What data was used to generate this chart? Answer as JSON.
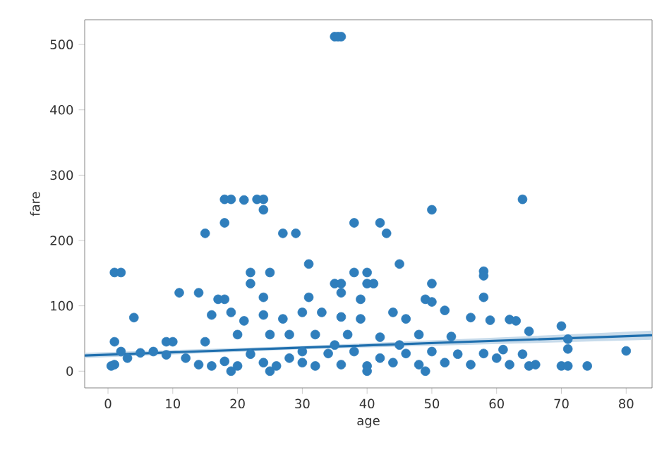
{
  "chart_data": {
    "type": "scatter",
    "xlabel": "age",
    "ylabel": "fare",
    "xlim": [
      -3.6,
      84
    ],
    "ylim": [
      -25.6,
      537.9
    ],
    "xticks": [
      0,
      10,
      20,
      30,
      40,
      50,
      60,
      70,
      80
    ],
    "yticks": [
      0,
      100,
      200,
      300,
      400,
      500
    ],
    "series": [
      {
        "color": "#2f7ebc",
        "marker": "circle",
        "x": [
          35,
          36,
          35.5,
          18,
          19,
          23,
          24,
          21,
          64,
          24,
          50,
          18,
          38,
          42,
          15,
          27,
          29,
          43,
          31,
          45,
          1,
          2,
          22,
          25,
          38,
          40,
          58,
          58,
          22,
          35,
          36,
          40,
          41,
          50,
          36,
          11,
          14,
          24,
          31,
          39,
          58,
          17,
          18,
          49,
          50,
          4,
          16,
          19,
          21,
          24,
          27,
          30,
          33,
          36,
          39,
          44,
          46,
          52,
          56,
          59,
          62,
          63,
          70,
          65,
          20,
          25,
          28,
          32,
          37,
          42,
          48,
          53,
          71,
          71,
          80,
          1,
          2,
          3,
          5,
          7,
          9,
          10,
          12,
          14,
          16,
          18,
          20,
          22,
          24,
          26,
          28,
          30,
          32,
          34,
          36,
          38,
          40,
          42,
          44,
          46,
          48,
          50,
          52,
          54,
          56,
          58,
          60,
          61,
          62,
          64,
          65,
          66,
          70,
          71,
          74,
          1,
          9,
          0.5,
          15,
          25,
          30,
          35,
          45,
          19,
          49,
          40
        ],
        "values": [
          512,
          512,
          512,
          263,
          263,
          263,
          263,
          262,
          263,
          247,
          247,
          227,
          227,
          227,
          211,
          211,
          211,
          211,
          164,
          164,
          151,
          151,
          151,
          151,
          151,
          151,
          153,
          146,
          134,
          134,
          134,
          134,
          134,
          134,
          120,
          120,
          120,
          113,
          113,
          110,
          113,
          110,
          110,
          110,
          106,
          82,
          86,
          90,
          77,
          86,
          80,
          90,
          90,
          83,
          80,
          90,
          80,
          93,
          82,
          78,
          79,
          77,
          69,
          61,
          56,
          56,
          56,
          56,
          56,
          52,
          56,
          53,
          49,
          34,
          31,
          10,
          30,
          20,
          28,
          30,
          25,
          45,
          20,
          10,
          8,
          15,
          8,
          26,
          13,
          8,
          20,
          13,
          8,
          27,
          10,
          30,
          8,
          20,
          13,
          27,
          10,
          30,
          13,
          26,
          10,
          27,
          20,
          33,
          10,
          26,
          8,
          10,
          8,
          8,
          8,
          45,
          45,
          8,
          45,
          0,
          30,
          40,
          40,
          0,
          0,
          0
        ]
      },
      {
        "type": "line",
        "marker": "none",
        "color": "#1f6fae",
        "x": [
          -3.6,
          30,
          84
        ],
        "values": [
          24,
          36,
          55
        ],
        "lower": [
          20,
          33.5,
          48
        ],
        "upper": [
          28,
          38.5,
          62
        ]
      }
    ]
  }
}
